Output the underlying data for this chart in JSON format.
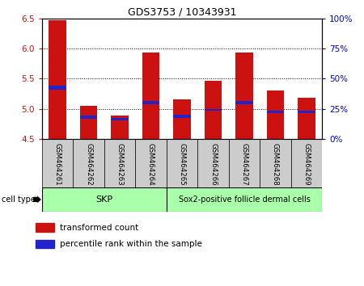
{
  "title": "GDS3753 / 10343931",
  "samples": [
    "GSM464261",
    "GSM464262",
    "GSM464263",
    "GSM464264",
    "GSM464265",
    "GSM464266",
    "GSM464267",
    "GSM464268",
    "GSM464269"
  ],
  "transformed_count": [
    6.47,
    5.05,
    4.88,
    5.93,
    5.16,
    5.47,
    5.93,
    5.3,
    5.18
  ],
  "percentile_bottom": [
    5.32,
    4.83,
    4.8,
    5.08,
    4.85,
    4.97,
    5.08,
    4.92,
    4.93
  ],
  "percentile_top": [
    5.38,
    4.88,
    4.85,
    5.13,
    4.9,
    5.0,
    5.13,
    4.97,
    4.97
  ],
  "bar_bottom": 4.5,
  "ylim": [
    4.5,
    6.5
  ],
  "yticks_left": [
    4.5,
    5.0,
    5.5,
    6.0,
    6.5
  ],
  "yticks_right": [
    0,
    25,
    50,
    75,
    100
  ],
  "skp_count": 4,
  "bar_color": "#cc1111",
  "percentile_color": "#2222cc",
  "bar_width": 0.55,
  "label_bg_color": "#cccccc",
  "cell_type_color": "#aaffaa",
  "ylabel_left_color": "#cc1111",
  "ylabel_right_color": "#0000cc",
  "background_color": "#ffffff"
}
